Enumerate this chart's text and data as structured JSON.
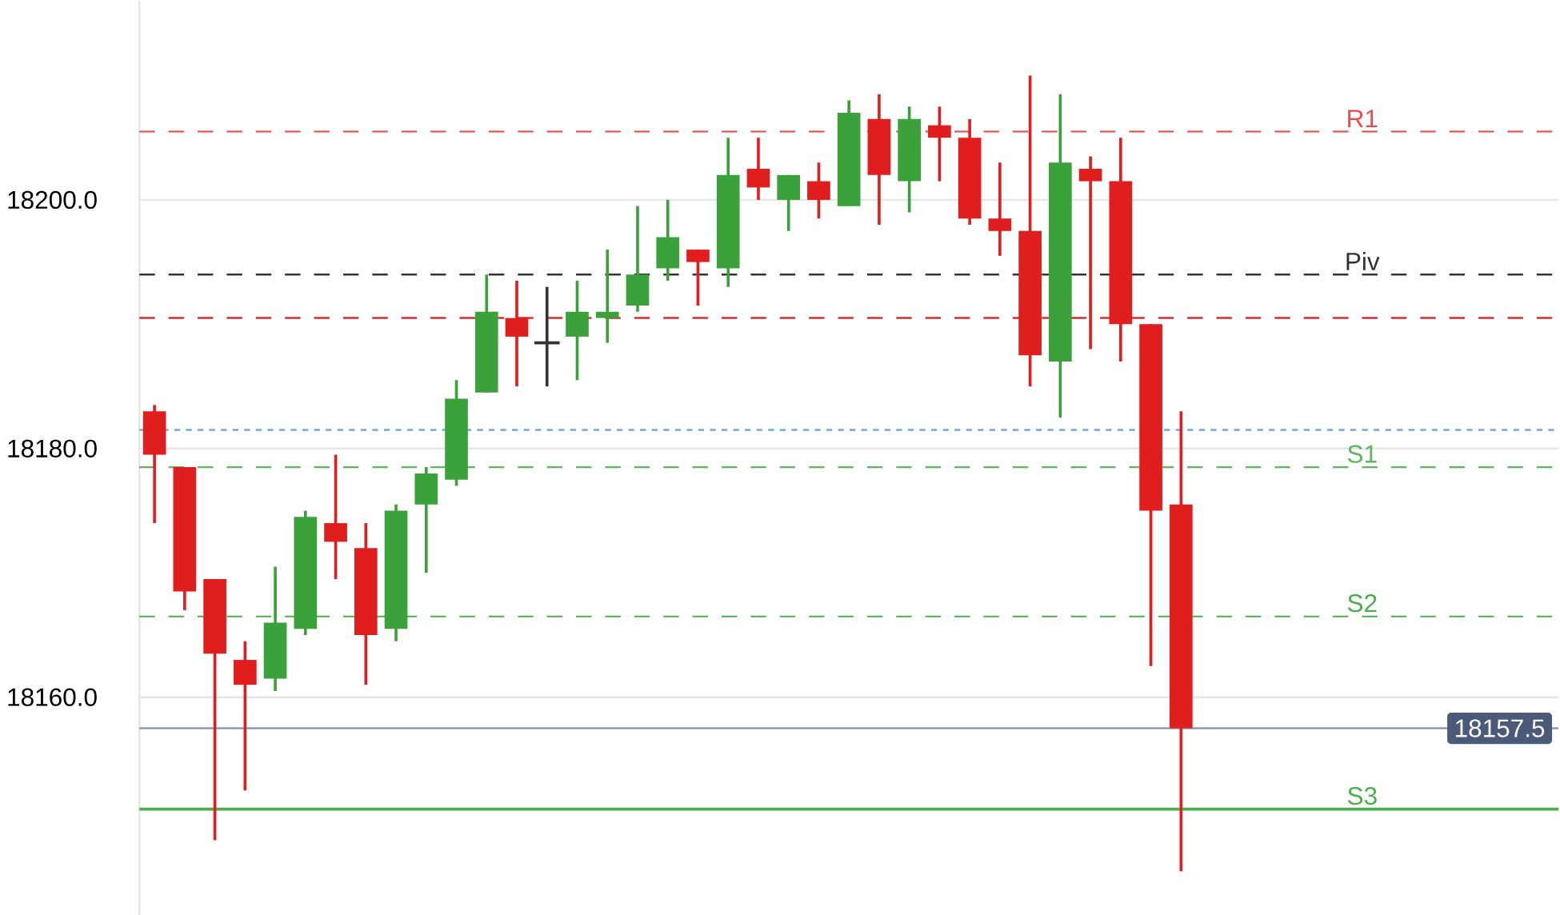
{
  "chart_data": {
    "type": "candlestick",
    "categories": [
      null,
      null,
      null,
      null,
      null,
      null,
      null,
      null,
      null,
      null,
      null,
      null,
      null,
      null,
      null,
      null,
      null,
      null,
      null,
      null,
      null,
      null,
      null,
      null,
      null,
      null,
      null,
      null,
      null,
      null,
      null,
      null,
      null,
      null,
      null,
      null,
      null,
      null,
      null,
      null,
      null,
      null,
      null,
      null,
      null,
      null,
      null
    ],
    "ohlc": [
      [
        18183,
        18183.5,
        18174,
        18179.5
      ],
      [
        18178.5,
        18178.5,
        18167,
        18168.5
      ],
      [
        18169.5,
        18169.5,
        18148.5,
        18163.5
      ],
      [
        18163,
        18164.5,
        18152.5,
        18161
      ],
      [
        18161.5,
        18170.5,
        18160.5,
        18166
      ],
      [
        18165.5,
        18175,
        18165,
        18174.5
      ],
      [
        18174,
        18179.5,
        18169.5,
        18172.5
      ],
      [
        18172,
        18174,
        18161,
        18165
      ],
      [
        18165.5,
        18175.5,
        18164.5,
        18175
      ],
      [
        18175.5,
        18178.5,
        18170,
        18178
      ],
      [
        18177.5,
        18185.5,
        18177,
        18184
      ],
      [
        18184.5,
        18194,
        18184.5,
        18191
      ],
      [
        18190.5,
        18193.5,
        18185,
        18189
      ],
      [
        18188.5,
        18193,
        18185,
        18188.5
      ],
      [
        18189,
        18193.5,
        18185.5,
        18191
      ],
      [
        18190.5,
        18196,
        18188.5,
        18191
      ],
      [
        18191.5,
        18199.5,
        18191,
        18194
      ],
      [
        18194.5,
        18200,
        18193.5,
        18197
      ],
      [
        18196,
        18196,
        18191.5,
        18195
      ],
      [
        18194.5,
        18205,
        18193,
        18202
      ],
      [
        18202.5,
        18205,
        18200,
        18201
      ],
      [
        18200,
        18202,
        18197.5,
        18202
      ],
      [
        18201.5,
        18203,
        18198.5,
        18200
      ],
      [
        18199.5,
        18208,
        18199.5,
        18207
      ],
      [
        18206.5,
        18208.5,
        18198,
        18202
      ],
      [
        18201.5,
        18207.5,
        18199,
        18206.5
      ],
      [
        18206,
        18207.5,
        18201.5,
        18205
      ],
      [
        18205,
        18206.5,
        18198,
        18198.5
      ],
      [
        18198.5,
        18203,
        18195.5,
        18197.5
      ],
      [
        18197.5,
        18210,
        18185,
        18187.5
      ],
      [
        18187,
        18208.5,
        18182.5,
        18203
      ],
      [
        18202.5,
        18203.5,
        18188,
        18201.5
      ],
      [
        18201.5,
        18205,
        18187,
        18190
      ],
      [
        18190,
        18190,
        18162.5,
        18175
      ],
      [
        18175.5,
        18183,
        18146,
        18157.5
      ],
      null,
      null,
      null,
      null,
      null,
      null,
      null,
      null,
      null,
      null,
      null,
      null
    ],
    "colors": [
      "#e01e1e",
      "#e01e1e",
      "#e01e1e",
      "#e01e1e",
      "#3ba23b",
      "#3ba23b",
      "#e01e1e",
      "#e01e1e",
      "#3ba23b",
      "#3ba23b",
      "#3ba23b",
      "#3ba23b",
      "#e01e1e",
      "#333333",
      "#3ba23b",
      "#3ba23b",
      "#3ba23b",
      "#3ba23b",
      "#e01e1e",
      "#3ba23b",
      "#e01e1e",
      "#3ba23b",
      "#e01e1e",
      "#3ba23b",
      "#e01e1e",
      "#3ba23b",
      "#e01e1e",
      "#e01e1e",
      "#e01e1e",
      "#e01e1e",
      "#3ba23b",
      "#e01e1e",
      "#e01e1e",
      "#e01e1e",
      "#e01e1e",
      null,
      null,
      null,
      null,
      null,
      null,
      null,
      null,
      null,
      null,
      null,
      null
    ],
    "ylim": [
      18142.5,
      18216
    ],
    "yticks": [
      {
        "value": 18160,
        "label": "18160.0"
      },
      {
        "value": 18180,
        "label": "18180.0"
      },
      {
        "value": 18200,
        "label": "18200.0"
      }
    ],
    "grid": "y",
    "ref_lines": [
      {
        "axis": "y",
        "value": 18205.5,
        "label": "R1",
        "color": "#e84a4a",
        "line_style": "dashed"
      },
      {
        "axis": "y",
        "value": 18194,
        "label": "Piv",
        "color": "#333333",
        "line_style": "dashed"
      },
      {
        "axis": "y",
        "value": 18190.5,
        "color": "#d03030",
        "line_style": "dashed"
      },
      {
        "axis": "y",
        "value": 18181.5,
        "color": "#6fa8dc",
        "line_style": "dotted"
      },
      {
        "axis": "y",
        "value": 18178.5,
        "label": "S1",
        "color": "#5cb85c",
        "line_style": "dashed"
      },
      {
        "axis": "y",
        "value": 18166.5,
        "label": "S2",
        "color": "#4cae4c",
        "line_style": "dashed"
      },
      {
        "axis": "y",
        "value": 18151,
        "label": "S3",
        "color": "#4cae4c",
        "line_style": "solid"
      },
      {
        "axis": "y",
        "value": 18157.5,
        "color": "#8e9aab",
        "line_style": "solid"
      }
    ],
    "annotations": [
      {
        "text": "18157.5",
        "y": 18157.5
      }
    ]
  }
}
